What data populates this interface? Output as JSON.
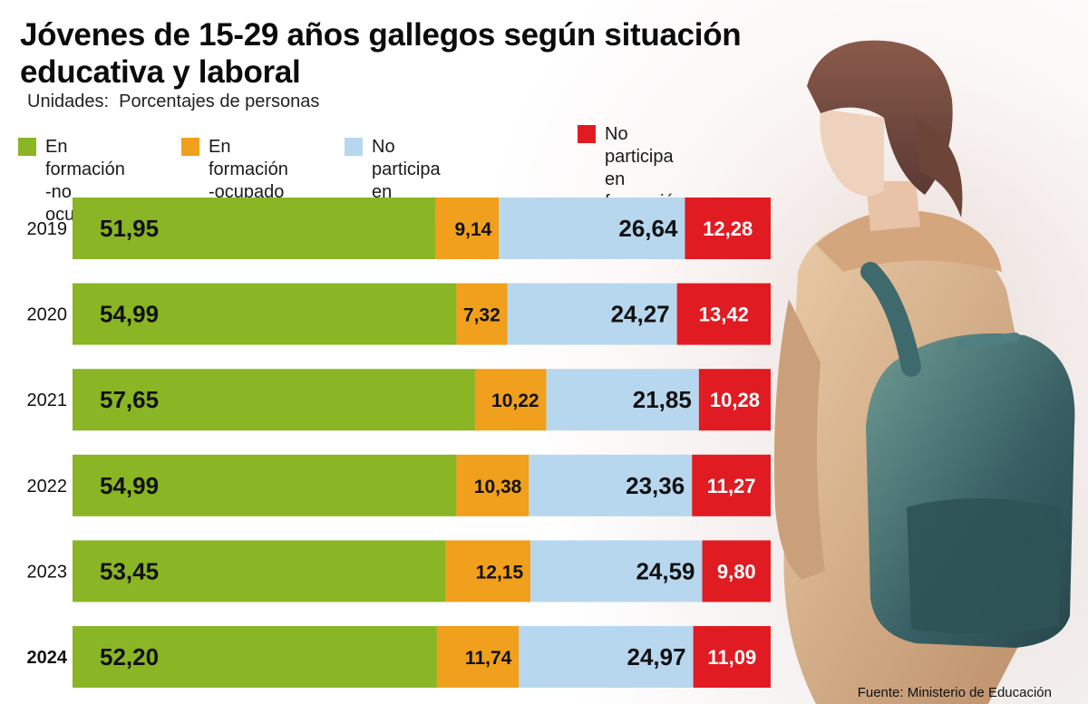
{
  "chart_data": {
    "type": "bar",
    "orientation": "horizontal",
    "stacked": true,
    "title": "Jóvenes de 15-29 años gallegos según situación educativa y laboral",
    "subtitle": "Unidades:  Porcentajes de personas",
    "categories": [
      "2019",
      "2020",
      "2021",
      "2022",
      "2023",
      "2024"
    ],
    "highlight_category": "2024",
    "series": [
      {
        "name": "En formación\n-no ocupado",
        "color": "#8ab524",
        "values": [
          51.95,
          54.99,
          57.65,
          54.99,
          53.45,
          52.2
        ],
        "labels": [
          "51,95",
          "54,99",
          "57,65",
          "54,99",
          "53,45",
          "52,20"
        ]
      },
      {
        "name": "En formación\n-ocupado",
        "color": "#f0a01c",
        "values": [
          9.14,
          7.32,
          10.22,
          10.38,
          12.15,
          11.74
        ],
        "labels": [
          "9,14",
          "7,32",
          "10,22",
          "10,38",
          "12,15",
          "11,74"
        ]
      },
      {
        "name": "No participa en\nformación-ocupado",
        "color": "#b7d7ee",
        "values": [
          26.64,
          24.27,
          21.85,
          23.36,
          24.59,
          24.97
        ],
        "labels": [
          "26,64",
          "24,27",
          "21,85",
          "23,36",
          "24,59",
          "24,97"
        ]
      },
      {
        "name": "No participa\nen formación\n-no ocupado",
        "color": "#e11b22",
        "values": [
          12.28,
          13.42,
          10.28,
          11.27,
          9.8,
          11.09
        ],
        "labels": [
          "12,28",
          "13,42",
          "10,28",
          "11,27",
          "9,80",
          "11,09"
        ]
      }
    ],
    "xlim": [
      0,
      100
    ],
    "grid": false,
    "legend_position": "top"
  },
  "source": "Fuente: Ministerio de Educación"
}
